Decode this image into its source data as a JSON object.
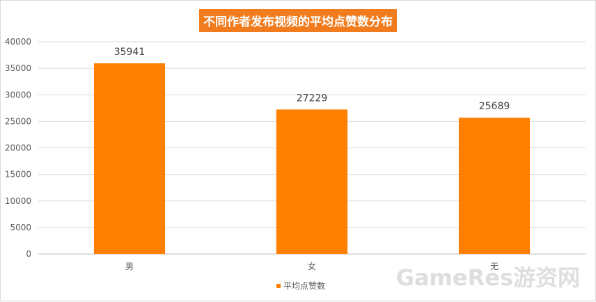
{
  "chart_data": {
    "type": "bar",
    "title": "不同作者发布视频的平均点赞数分布",
    "categories": [
      "男",
      "女",
      "无"
    ],
    "series": [
      {
        "name": "平均点赞数",
        "values": [
          35941,
          27229,
          25689
        ]
      }
    ],
    "data_labels": [
      "35941",
      "27229",
      "25689"
    ],
    "y_ticks": [
      "0",
      "5000",
      "10000",
      "15000",
      "20000",
      "25000",
      "30000",
      "35000",
      "40000"
    ],
    "ylim": [
      0,
      40000
    ],
    "grid": true,
    "legend_position": "bottom",
    "colors": {
      "bar": "#ff7f00",
      "title_bg": "#f07c1e",
      "grid": "#d9d9d9"
    }
  },
  "watermark": "GameRes游资网"
}
